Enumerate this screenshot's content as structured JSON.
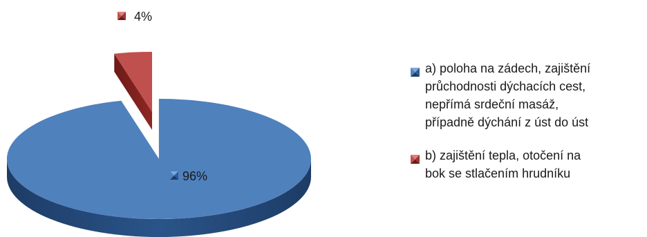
{
  "colors": {
    "series_a": "#4f81bd",
    "series_a_dark": "#1d3c66",
    "series_a_light": "#7fa7da",
    "series_b": "#c0504d",
    "series_b_dark": "#6e1a18",
    "series_b_light": "#e0807d"
  },
  "chart_data": {
    "type": "pie",
    "style": "3d-exploded",
    "legend_position": "right",
    "slices": [
      {
        "label": "a) poloha na zádech, zajištění průchodnosti dýchacích cest, nepřímá srdeční masáž, případně dýchání z úst do úst",
        "value": 96,
        "data_label": "96%"
      },
      {
        "label": "b) zajištění tepla, otočení na bok se stlačením hrudníku",
        "value": 4,
        "data_label": "4%"
      }
    ]
  },
  "legend": {
    "items": [
      {
        "lines": [
          "a) poloha na zádech, zajištění",
          "průchodnosti dýchacích cest,",
          "nepřímá srdeční masáž,",
          "případně dýchání z úst do úst"
        ]
      },
      {
        "lines": [
          "b) zajištění tepla, otočení na",
          "bok se stlačením hrudníku"
        ]
      }
    ]
  }
}
